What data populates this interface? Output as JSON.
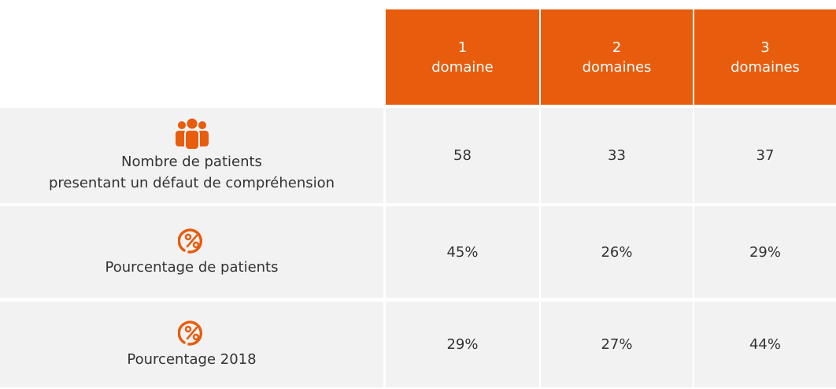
{
  "table": {
    "columns": [
      {
        "number": "1",
        "label": "domaine"
      },
      {
        "number": "2",
        "label": "domaines"
      },
      {
        "number": "3",
        "label": "domaines"
      }
    ],
    "rows": [
      {
        "label": [
          "Nombre de patients",
          "presentant un défaut de compréhension"
        ],
        "cells": [
          "58",
          "33",
          "37"
        ]
      },
      {
        "label": [
          "Pourcentage de patients"
        ],
        "cells": [
          "45%",
          "26%",
          "29%"
        ]
      },
      {
        "label": [
          "Pourcentage 2018"
        ],
        "cells": [
          "29%",
          "27%",
          "44%"
        ]
      }
    ]
  }
}
